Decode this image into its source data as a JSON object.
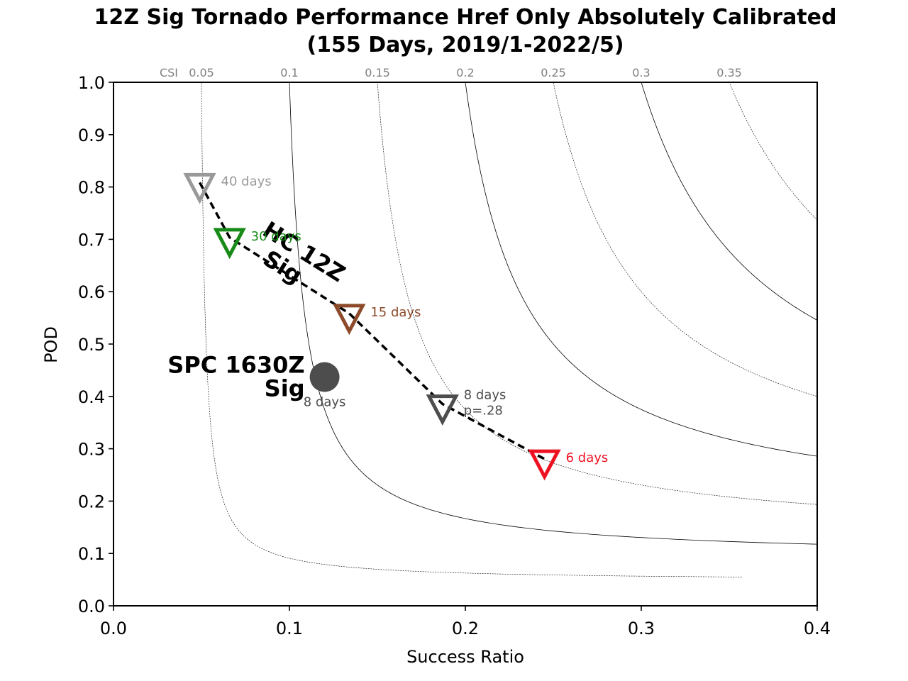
{
  "title_line1": "12Z Sig Tornado Performance Href Only Absolutely Calibrated",
  "title_line2": "(155 Days, 2019/1-2022/5)",
  "chart_data": {
    "type": "scatter",
    "title": "12Z Sig Tornado Performance Href Only Absolutely Calibrated (155 Days, 2019/1-2022/5)",
    "xlabel": "Success Ratio",
    "ylabel": "POD",
    "xlim": [
      0.0,
      0.4
    ],
    "ylim": [
      0.0,
      1.0
    ],
    "x_ticks": [
      "0.0",
      "0.1",
      "0.2",
      "0.3",
      "0.4"
    ],
    "y_ticks": [
      "0.0",
      "0.1",
      "0.2",
      "0.3",
      "0.4",
      "0.5",
      "0.6",
      "0.7",
      "0.8",
      "0.9",
      "1.0"
    ],
    "csi_prefix": "CSI",
    "csi_lines": [
      {
        "csi": 0.05,
        "label": "0.05",
        "style": "dashed"
      },
      {
        "csi": 0.1,
        "label": "0.1",
        "style": "solid"
      },
      {
        "csi": 0.15,
        "label": "0.15",
        "style": "dashed"
      },
      {
        "csi": 0.2,
        "label": "0.2",
        "style": "solid"
      },
      {
        "csi": 0.25,
        "label": "0.25",
        "style": "dashed"
      },
      {
        "csi": 0.3,
        "label": "0.3",
        "style": "solid"
      },
      {
        "csi": 0.35,
        "label": "0.35",
        "style": "dashed"
      }
    ],
    "series": [
      {
        "line_label": "HC 12Z Sig",
        "marker": "triangle-down",
        "points": [
          {
            "x": 0.049,
            "y": 0.795,
            "label": "40 days",
            "color": "#999999"
          },
          {
            "x": 0.066,
            "y": 0.69,
            "label": "30 days",
            "color": "#178a17"
          },
          {
            "x": 0.134,
            "y": 0.545,
            "label": "15 days",
            "color": "#8c4a2a"
          },
          {
            "x": 0.187,
            "y": 0.372,
            "label": "8 days\np=.28",
            "color": "#4d4d4d"
          },
          {
            "x": 0.245,
            "y": 0.267,
            "label": "6 days",
            "color": "#ee1122"
          }
        ]
      },
      {
        "line_label": "SPC 1630Z\nSig",
        "marker": "circle",
        "points": [
          {
            "x": 0.12,
            "y": 0.437,
            "label": "8 days",
            "color": "#4d4d4d"
          }
        ]
      }
    ]
  }
}
